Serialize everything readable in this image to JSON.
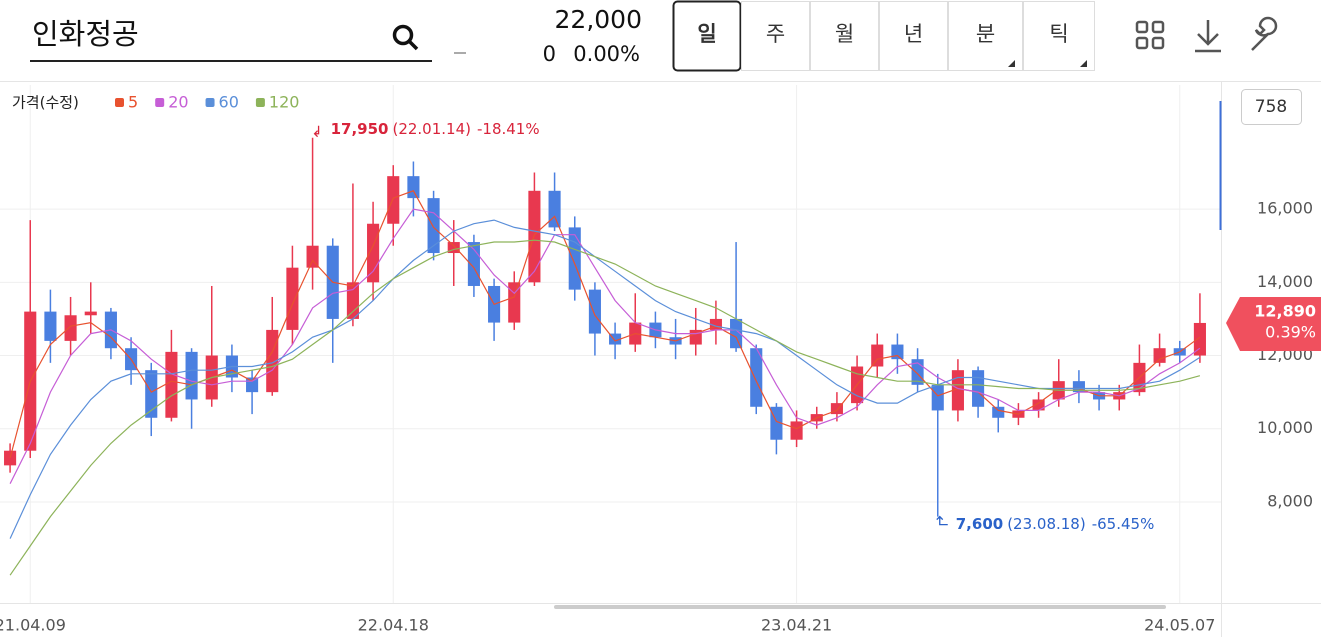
{
  "header": {
    "search": "인화정공",
    "price": "22,000",
    "change": "0",
    "change_pct": "0.00%",
    "tabs": [
      "일",
      "주",
      "월",
      "년",
      "분",
      "틱"
    ],
    "volume_box": "758"
  },
  "chart_data": {
    "type": "candlestick",
    "legend_title": "가격(수정)",
    "up_color": "#e8384f",
    "down_color": "#4a7fe0",
    "categories": [
      null,
      "21.04.09",
      null,
      null,
      null,
      null,
      null,
      null,
      null,
      null,
      null,
      null,
      null,
      null,
      null,
      null,
      null,
      null,
      null,
      "22.04.18",
      null,
      null,
      null,
      null,
      null,
      null,
      null,
      null,
      null,
      null,
      null,
      null,
      null,
      null,
      null,
      null,
      null,
      null,
      null,
      "23.04.21",
      null,
      null,
      null,
      null,
      null,
      null,
      null,
      null,
      null,
      null,
      null,
      null,
      null,
      null,
      null,
      null,
      null,
      null,
      "24.05.07",
      null
    ],
    "ohlc": [
      [
        9000,
        9600,
        8800,
        9400
      ],
      [
        9400,
        15700,
        9200,
        13200
      ],
      [
        13200,
        13800,
        11800,
        12400
      ],
      [
        12400,
        13600,
        12000,
        13100
      ],
      [
        13100,
        14000,
        12600,
        13200
      ],
      [
        13200,
        13300,
        11900,
        12200
      ],
      [
        12200,
        12500,
        11200,
        11600
      ],
      [
        11600,
        11800,
        9800,
        10300
      ],
      [
        10300,
        12700,
        10200,
        12100
      ],
      [
        12100,
        12200,
        10000,
        10800
      ],
      [
        10800,
        13900,
        10600,
        12000
      ],
      [
        12000,
        12300,
        11000,
        11400
      ],
      [
        11400,
        11600,
        10400,
        11000
      ],
      [
        11000,
        13600,
        10900,
        12700
      ],
      [
        12700,
        15000,
        12300,
        14400
      ],
      [
        14400,
        17950,
        13800,
        15000
      ],
      [
        15000,
        15200,
        11800,
        13000
      ],
      [
        13000,
        16700,
        12800,
        14000
      ],
      [
        14000,
        16200,
        13500,
        15600
      ],
      [
        15600,
        17200,
        15000,
        16900
      ],
      [
        16900,
        17300,
        15800,
        16300
      ],
      [
        16300,
        16500,
        14600,
        14800
      ],
      [
        14800,
        15700,
        13900,
        15100
      ],
      [
        15100,
        15300,
        13600,
        13900
      ],
      [
        13900,
        14100,
        12400,
        12900
      ],
      [
        12900,
        14300,
        12700,
        14000
      ],
      [
        14000,
        17000,
        13900,
        16500
      ],
      [
        16500,
        17000,
        15400,
        15500
      ],
      [
        15500,
        15800,
        13500,
        13800
      ],
      [
        13800,
        14000,
        12000,
        12600
      ],
      [
        12600,
        12900,
        11900,
        12300
      ],
      [
        12300,
        13700,
        12100,
        12900
      ],
      [
        12900,
        13200,
        12200,
        12500
      ],
      [
        12500,
        13000,
        11900,
        12300
      ],
      [
        12300,
        13300,
        12000,
        12700
      ],
      [
        12700,
        13500,
        12300,
        13000
      ],
      [
        13000,
        15100,
        12100,
        12200
      ],
      [
        12200,
        12300,
        10400,
        10600
      ],
      [
        10600,
        10700,
        9300,
        9700
      ],
      [
        9700,
        10500,
        9500,
        10200
      ],
      [
        10200,
        10600,
        10000,
        10400
      ],
      [
        10400,
        11000,
        10200,
        10700
      ],
      [
        10700,
        12000,
        10500,
        11700
      ],
      [
        11700,
        12600,
        11400,
        12300
      ],
      [
        12300,
        12600,
        11500,
        11900
      ],
      [
        11900,
        12200,
        11000,
        11200
      ],
      [
        11200,
        11500,
        7600,
        10500
      ],
      [
        10500,
        11900,
        10200,
        11600
      ],
      [
        11600,
        11700,
        10300,
        10600
      ],
      [
        10600,
        10800,
        9900,
        10300
      ],
      [
        10300,
        10700,
        10100,
        10500
      ],
      [
        10500,
        11000,
        10300,
        10800
      ],
      [
        10800,
        11900,
        10600,
        11300
      ],
      [
        11300,
        11600,
        10700,
        11000
      ],
      [
        11000,
        11200,
        10500,
        10800
      ],
      [
        10800,
        11200,
        10500,
        11000
      ],
      [
        11000,
        12300,
        10900,
        11800
      ],
      [
        11800,
        12600,
        11700,
        12200
      ],
      [
        12200,
        12400,
        11800,
        12000
      ],
      [
        12000,
        13700,
        11800,
        12890
      ]
    ],
    "series": [
      {
        "name": "5",
        "color": "#e8522f",
        "values": [
          9200,
          11300,
          12300,
          12800,
          12900,
          12500,
          11900,
          11000,
          11300,
          11200,
          11400,
          11600,
          11300,
          12100,
          13400,
          14600,
          14000,
          13900,
          15000,
          16300,
          16500,
          15500,
          15000,
          14400,
          13400,
          13600,
          15300,
          15800,
          14500,
          13100,
          12400,
          12600,
          12500,
          12400,
          12600,
          12800,
          12500,
          11300,
          10200,
          10000,
          10300,
          10500,
          11200,
          11900,
          12000,
          11500,
          10900,
          11100,
          11000,
          10500,
          10400,
          10700,
          11100,
          11100,
          10900,
          10900,
          11400,
          11900,
          12100,
          12500
        ]
      },
      {
        "name": "20",
        "color": "#c65ed6",
        "values": [
          8500,
          9600,
          11000,
          12000,
          12600,
          12700,
          12400,
          11900,
          11500,
          11300,
          11200,
          11300,
          11300,
          11600,
          12300,
          13300,
          13700,
          13800,
          14300,
          15200,
          16000,
          15900,
          15400,
          14900,
          14200,
          13700,
          14300,
          15300,
          15300,
          14400,
          13500,
          12900,
          12700,
          12600,
          12600,
          12700,
          12700,
          12200,
          11200,
          10300,
          10100,
          10300,
          10600,
          11200,
          11700,
          11800,
          11400,
          11100,
          11000,
          10800,
          10500,
          10500,
          10800,
          11000,
          11000,
          10900,
          11100,
          11500,
          11800,
          12200
        ]
      },
      {
        "name": "60",
        "color": "#5b8fd9",
        "values": [
          7000,
          8200,
          9300,
          10100,
          10800,
          11300,
          11500,
          11500,
          11500,
          11600,
          11600,
          11700,
          11700,
          11800,
          12100,
          12500,
          12700,
          13000,
          13500,
          14100,
          14600,
          15000,
          15400,
          15600,
          15700,
          15500,
          15400,
          15300,
          15100,
          14700,
          14300,
          13900,
          13500,
          13200,
          13000,
          12800,
          12700,
          12600,
          12400,
          12000,
          11600,
          11200,
          10900,
          10700,
          10700,
          11000,
          11200,
          11400,
          11400,
          11300,
          11200,
          11100,
          11100,
          11100,
          11100,
          11100,
          11200,
          11300,
          11600,
          11950
        ]
      },
      {
        "name": "120",
        "color": "#8db35a",
        "values": [
          6000,
          6800,
          7600,
          8300,
          9000,
          9600,
          10100,
          10500,
          10900,
          11200,
          11400,
          11500,
          11600,
          11700,
          11900,
          12300,
          12700,
          13200,
          13700,
          14100,
          14400,
          14700,
          14900,
          15000,
          15100,
          15100,
          15150,
          15100,
          14900,
          14700,
          14500,
          14200,
          13900,
          13700,
          13500,
          13300,
          13000,
          12700,
          12400,
          12100,
          11900,
          11700,
          11500,
          11400,
          11300,
          11300,
          11200,
          11200,
          11200,
          11150,
          11100,
          11100,
          11050,
          11050,
          11050,
          11050,
          11100,
          11200,
          11300,
          11450
        ]
      }
    ],
    "ylim": [
      5240,
      19390
    ],
    "yticks": [
      {
        "value": 8000,
        "label": "8,000"
      },
      {
        "value": 10000,
        "label": "10,000"
      },
      {
        "value": 12000,
        "label": "12,000"
      },
      {
        "value": 14000,
        "label": "14,000"
      },
      {
        "value": 16000,
        "label": "16,000"
      }
    ],
    "grid": true,
    "high": {
      "value": 17950,
      "label": "17,950",
      "date": "(22.01.14)",
      "change": "-18.41%",
      "color": "#d8243b"
    },
    "low": {
      "value": 7600,
      "label": "7,600",
      "date": "(23.08.18)",
      "change": "-65.45%",
      "color": "#2a62c9"
    },
    "last": {
      "value": 12890,
      "label": "12,890",
      "change": "0.39%",
      "color": "#f0505e"
    }
  }
}
